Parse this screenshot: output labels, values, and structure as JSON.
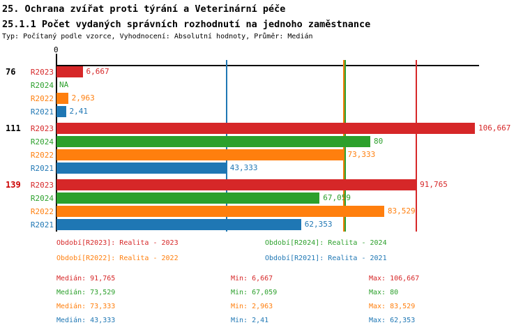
{
  "page": {
    "title": "25. Ochrana zvířat proti týrání a Veterinární péče",
    "subtitle": "25.1.1 Počet vydaných správních rozhodnutí na jednoho zaměstnance",
    "meta": "Typ: Počítaný podle vzorce, Vyhodnocení: Absolutní hodnoty, Průměr: Medián"
  },
  "chart_data": {
    "type": "bar",
    "orientation": "horizontal",
    "value_axis": {
      "zero_label": "0",
      "min": 0,
      "scale_max": 106.667,
      "grid": "median-lines-only"
    },
    "series": [
      {
        "id": "R2023",
        "color": "#d62728",
        "legend_label": "Období[R2023]: Realita - 2023",
        "median": 91.765,
        "median_display": "91,765",
        "min_display": "6,667",
        "max_display": "106,667"
      },
      {
        "id": "R2024",
        "color": "#2ca02c",
        "legend_label": "Období[R2024]: Realita - 2024",
        "median": 73.529,
        "median_display": "73,529",
        "min_display": "67,059",
        "max_display": "80"
      },
      {
        "id": "R2022",
        "color": "#ff7f0e",
        "legend_label": "Období[R2022]: Realita - 2022",
        "median": 73.333,
        "median_display": "73,333",
        "min_display": "2,963",
        "max_display": "83,529"
      },
      {
        "id": "R2021",
        "color": "#1f77b4",
        "legend_label": "Období[R2021]: Realita - 2021",
        "median": 43.333,
        "median_display": "43,333",
        "min_display": "2,41",
        "max_display": "62,353"
      }
    ],
    "stats_labels": {
      "median": "Medián:",
      "min": "Min:",
      "max": "Max:"
    },
    "groups": [
      {
        "label": "76",
        "label_color": "#000000",
        "bars": [
          {
            "series": "R2023",
            "value": 6.667,
            "display": "6,667"
          },
          {
            "series": "R2024",
            "value": null,
            "display": "NA"
          },
          {
            "series": "R2022",
            "value": 2.963,
            "display": "2,963"
          },
          {
            "series": "R2021",
            "value": 2.41,
            "display": "2,41"
          }
        ]
      },
      {
        "label": "111",
        "label_color": "#000000",
        "bars": [
          {
            "series": "R2023",
            "value": 106.667,
            "display": "106,667"
          },
          {
            "series": "R2024",
            "value": 80,
            "display": "80"
          },
          {
            "series": "R2022",
            "value": 73.333,
            "display": "73,333"
          },
          {
            "series": "R2021",
            "value": 43.333,
            "display": "43,333"
          }
        ]
      },
      {
        "label": "139",
        "label_color": "#cc0000",
        "bars": [
          {
            "series": "R2023",
            "value": 91.765,
            "display": "91,765"
          },
          {
            "series": "R2024",
            "value": 67.059,
            "display": "67,059"
          },
          {
            "series": "R2022",
            "value": 83.529,
            "display": "83,529"
          },
          {
            "series": "R2021",
            "value": 62.353,
            "display": "62,353"
          }
        ]
      }
    ]
  }
}
